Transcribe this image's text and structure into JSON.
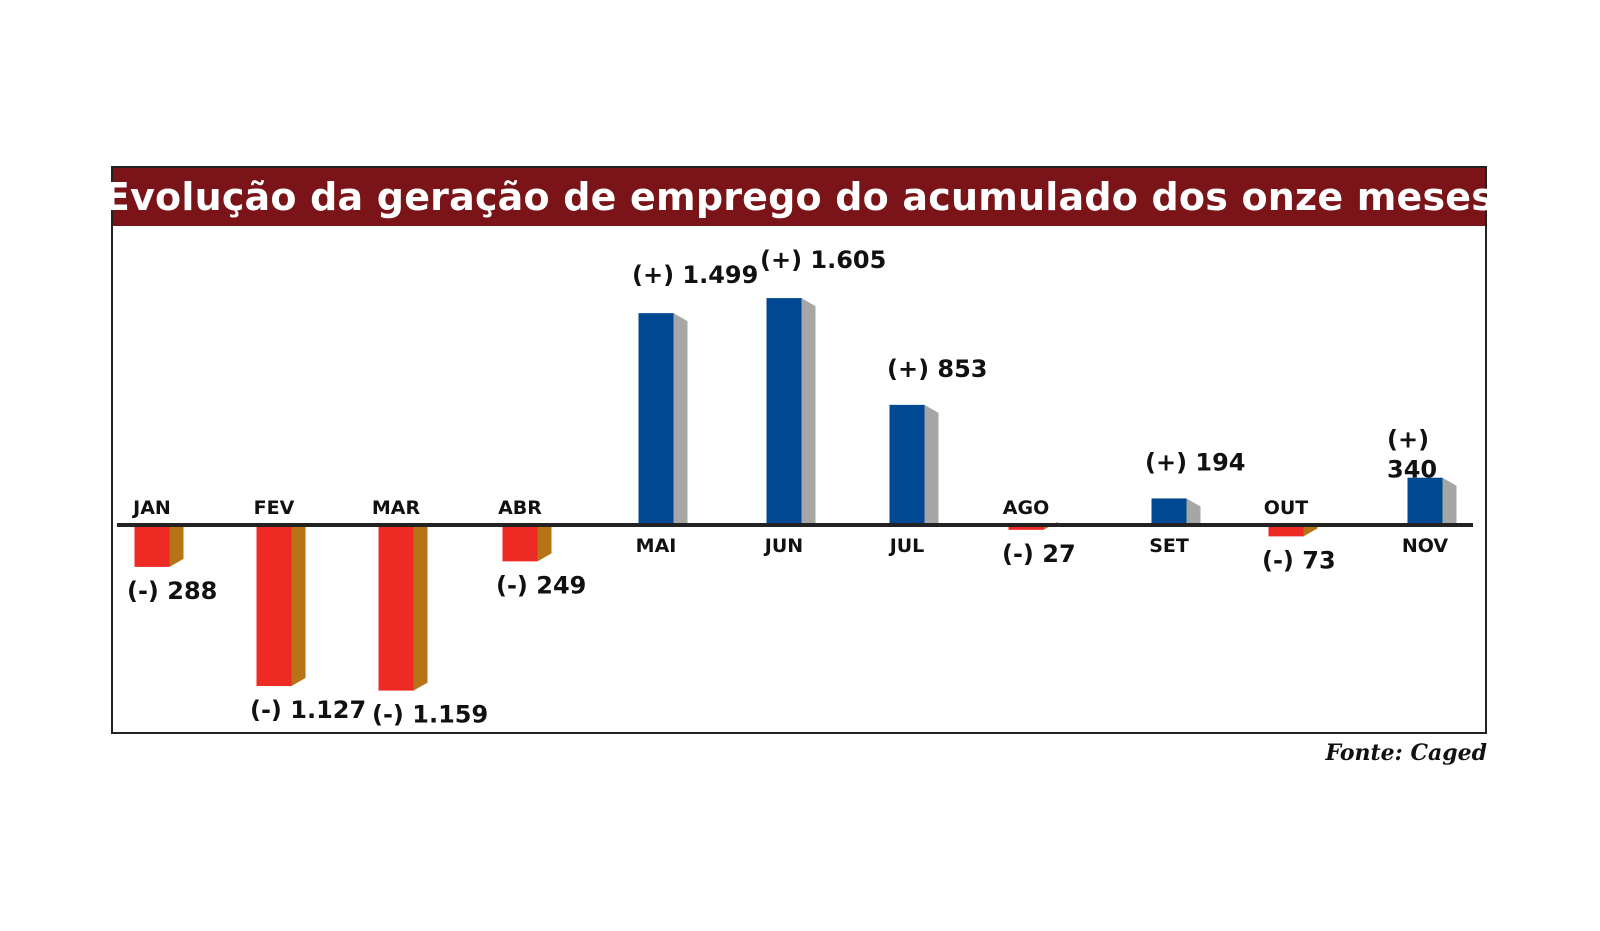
{
  "colors": {
    "title_bg": "#7a1418",
    "title_fg": "#ffffff",
    "positive_front": "#004892",
    "positive_side": "#a6a6a6",
    "negative_front": "#ee2a24",
    "negative_side": "#b87316",
    "baseline": "#222222",
    "text": "#111111"
  },
  "source": "Fonte: Caged",
  "chart_data": {
    "type": "bar",
    "title": "Evolução da geração de emprego do acumulado dos onze meses",
    "categories": [
      "JAN",
      "FEV",
      "MAR",
      "ABR",
      "MAI",
      "JUN",
      "JUL",
      "AGO",
      "SET",
      "OUT",
      "NOV"
    ],
    "values": [
      -288,
      -1127,
      -1159,
      -249,
      1499,
      1605,
      853,
      -27,
      194,
      -73,
      340
    ],
    "labels": [
      "(-) 288",
      "(-) 1.127",
      "(-) 1.159",
      "(-) 249",
      "(+) 1.499",
      "(+) 1.605",
      "(+) 853",
      "(-) 27",
      "(+) 194",
      "(-) 73",
      "(+) 340"
    ],
    "xlabel": "",
    "ylabel": "",
    "grid": false,
    "legend": "none"
  }
}
